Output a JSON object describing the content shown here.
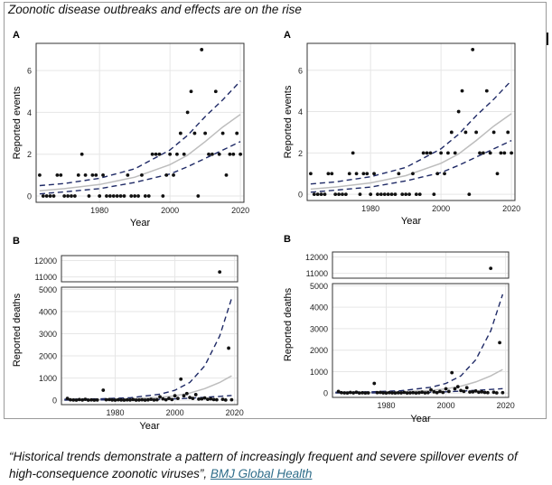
{
  "header": {
    "title": "Zoonotic disease outbreaks and effects are on the rise"
  },
  "caption": {
    "quote": "“Historical trends demonstrate a pattern of increasingly frequent and severe spillover events of high-consequence zoonotic viruses”, ",
    "link": "BMJ Global Health"
  },
  "colors": {
    "panel_border": "#333333",
    "grid": "#e6e6e6",
    "points": "#111111",
    "fit_line": "#bdbdbd",
    "ci_line": "#1f2a66"
  },
  "chart_data": [
    {
      "type": "scatter",
      "panel_label": "A",
      "xlabel": "Year",
      "ylabel": "Reported events",
      "xlim": [
        1962,
        2021
      ],
      "ylim": [
        -0.3,
        7.3
      ],
      "x_ticks": [
        1980,
        2000,
        2020
      ],
      "y_ticks": [
        0,
        2,
        4,
        6
      ],
      "grid": true,
      "points": [
        [
          1963,
          1
        ],
        [
          1964,
          0
        ],
        [
          1965,
          0
        ],
        [
          1966,
          0
        ],
        [
          1967,
          0
        ],
        [
          1968,
          1
        ],
        [
          1969,
          1
        ],
        [
          1970,
          0
        ],
        [
          1971,
          0
        ],
        [
          1972,
          0
        ],
        [
          1973,
          0
        ],
        [
          1974,
          1
        ],
        [
          1975,
          2
        ],
        [
          1976,
          1
        ],
        [
          1977,
          0
        ],
        [
          1978,
          1
        ],
        [
          1979,
          1
        ],
        [
          1980,
          0
        ],
        [
          1981,
          1
        ],
        [
          1982,
          0
        ],
        [
          1983,
          0
        ],
        [
          1984,
          0
        ],
        [
          1985,
          0
        ],
        [
          1986,
          0
        ],
        [
          1987,
          0
        ],
        [
          1988,
          1
        ],
        [
          1989,
          0
        ],
        [
          1990,
          0
        ],
        [
          1991,
          0
        ],
        [
          1992,
          1
        ],
        [
          1993,
          0
        ],
        [
          1994,
          0
        ],
        [
          1995,
          2
        ],
        [
          1996,
          2
        ],
        [
          1997,
          2
        ],
        [
          1998,
          0
        ],
        [
          1999,
          1
        ],
        [
          2000,
          2
        ],
        [
          2001,
          1
        ],
        [
          2002,
          2
        ],
        [
          2003,
          3
        ],
        [
          2004,
          2
        ],
        [
          2005,
          4
        ],
        [
          2006,
          5
        ],
        [
          2007,
          3
        ],
        [
          2008,
          0
        ],
        [
          2009,
          7
        ],
        [
          2010,
          3
        ],
        [
          2011,
          2
        ],
        [
          2012,
          2
        ],
        [
          2013,
          5
        ],
        [
          2014,
          2
        ],
        [
          2015,
          3
        ],
        [
          2016,
          1
        ],
        [
          2017,
          2
        ],
        [
          2018,
          2
        ],
        [
          2019,
          3
        ],
        [
          2020,
          2
        ]
      ],
      "fit": [
        [
          1963,
          0.25
        ],
        [
          1970,
          0.35
        ],
        [
          1980,
          0.55
        ],
        [
          1990,
          0.9
        ],
        [
          2000,
          1.5
        ],
        [
          2005,
          1.95
        ],
        [
          2010,
          2.6
        ],
        [
          2015,
          3.3
        ],
        [
          2020,
          3.9
        ]
      ],
      "ci_upper": [
        [
          1963,
          0.5
        ],
        [
          1970,
          0.6
        ],
        [
          1980,
          0.85
        ],
        [
          1990,
          1.3
        ],
        [
          2000,
          2.2
        ],
        [
          2005,
          2.9
        ],
        [
          2010,
          3.8
        ],
        [
          2015,
          4.6
        ],
        [
          2020,
          5.5
        ]
      ],
      "ci_lower": [
        [
          1963,
          0.1
        ],
        [
          1970,
          0.2
        ],
        [
          1980,
          0.35
        ],
        [
          1990,
          0.65
        ],
        [
          2000,
          1.05
        ],
        [
          2005,
          1.4
        ],
        [
          2010,
          1.8
        ],
        [
          2015,
          2.2
        ],
        [
          2020,
          2.6
        ]
      ]
    },
    {
      "type": "scatter",
      "panel_label": "A",
      "xlabel": "Year",
      "ylabel": "Reported events",
      "xlim": [
        1962,
        2021
      ],
      "ylim": [
        -0.3,
        7.3
      ],
      "x_ticks": [
        1980,
        2000,
        2020
      ],
      "y_ticks": [
        0,
        2,
        4,
        6
      ],
      "grid": true,
      "points": [
        [
          1963,
          1
        ],
        [
          1964,
          0
        ],
        [
          1965,
          0
        ],
        [
          1966,
          0
        ],
        [
          1967,
          0
        ],
        [
          1968,
          1
        ],
        [
          1969,
          1
        ],
        [
          1970,
          0
        ],
        [
          1971,
          0
        ],
        [
          1972,
          0
        ],
        [
          1973,
          0
        ],
        [
          1974,
          1
        ],
        [
          1975,
          2
        ],
        [
          1976,
          1
        ],
        [
          1977,
          0
        ],
        [
          1978,
          1
        ],
        [
          1979,
          1
        ],
        [
          1980,
          0
        ],
        [
          1981,
          1
        ],
        [
          1982,
          0
        ],
        [
          1983,
          0
        ],
        [
          1984,
          0
        ],
        [
          1985,
          0
        ],
        [
          1986,
          0
        ],
        [
          1987,
          0
        ],
        [
          1988,
          1
        ],
        [
          1989,
          0
        ],
        [
          1990,
          0
        ],
        [
          1991,
          0
        ],
        [
          1992,
          1
        ],
        [
          1993,
          0
        ],
        [
          1994,
          0
        ],
        [
          1995,
          2
        ],
        [
          1996,
          2
        ],
        [
          1997,
          2
        ],
        [
          1998,
          0
        ],
        [
          1999,
          1
        ],
        [
          2000,
          2
        ],
        [
          2001,
          1
        ],
        [
          2002,
          2
        ],
        [
          2003,
          3
        ],
        [
          2004,
          2
        ],
        [
          2005,
          4
        ],
        [
          2006,
          5
        ],
        [
          2007,
          3
        ],
        [
          2008,
          0
        ],
        [
          2009,
          7
        ],
        [
          2010,
          3
        ],
        [
          2011,
          2
        ],
        [
          2012,
          2
        ],
        [
          2013,
          5
        ],
        [
          2014,
          2
        ],
        [
          2015,
          3
        ],
        [
          2016,
          1
        ],
        [
          2017,
          2
        ],
        [
          2018,
          2
        ],
        [
          2019,
          3
        ],
        [
          2020,
          2
        ]
      ],
      "fit": [
        [
          1963,
          0.25
        ],
        [
          1970,
          0.35
        ],
        [
          1980,
          0.55
        ],
        [
          1990,
          0.9
        ],
        [
          2000,
          1.5
        ],
        [
          2005,
          1.95
        ],
        [
          2010,
          2.6
        ],
        [
          2015,
          3.3
        ],
        [
          2020,
          3.9
        ]
      ],
      "ci_upper": [
        [
          1963,
          0.5
        ],
        [
          1970,
          0.6
        ],
        [
          1980,
          0.85
        ],
        [
          1990,
          1.3
        ],
        [
          2000,
          2.2
        ],
        [
          2005,
          2.9
        ],
        [
          2010,
          3.8
        ],
        [
          2015,
          4.6
        ],
        [
          2020,
          5.5
        ]
      ],
      "ci_lower": [
        [
          1963,
          0.1
        ],
        [
          1970,
          0.2
        ],
        [
          1980,
          0.35
        ],
        [
          1990,
          0.65
        ],
        [
          2000,
          1.05
        ],
        [
          2005,
          1.4
        ],
        [
          2010,
          1.8
        ],
        [
          2015,
          2.2
        ],
        [
          2020,
          2.6
        ]
      ]
    },
    {
      "type": "scatter",
      "panel_label": "B",
      "xlabel": "Year",
      "ylabel": "Reported deaths",
      "xlim": [
        1962,
        2021
      ],
      "ylim": [
        -200,
        5100
      ],
      "ylim_top": [
        10700,
        12300
      ],
      "x_ticks": [
        1980,
        2000,
        2020
      ],
      "y_ticks": [
        0,
        1000,
        2000,
        3000,
        4000,
        5000
      ],
      "y_ticks_top": [
        11000,
        12000
      ],
      "grid": true,
      "points": [
        [
          1964,
          80
        ],
        [
          1965,
          20
        ],
        [
          1966,
          10
        ],
        [
          1967,
          5
        ],
        [
          1968,
          30
        ],
        [
          1969,
          10
        ],
        [
          1970,
          40
        ],
        [
          1971,
          5
        ],
        [
          1972,
          15
        ],
        [
          1973,
          5
        ],
        [
          1974,
          10
        ],
        [
          1976,
          450
        ],
        [
          1977,
          20
        ],
        [
          1978,
          30
        ],
        [
          1979,
          10
        ],
        [
          1980,
          5
        ],
        [
          1981,
          20
        ],
        [
          1982,
          10
        ],
        [
          1983,
          5
        ],
        [
          1984,
          15
        ],
        [
          1985,
          10
        ],
        [
          1986,
          30
        ],
        [
          1987,
          5
        ],
        [
          1988,
          10
        ],
        [
          1989,
          20
        ],
        [
          1990,
          5
        ],
        [
          1991,
          15
        ],
        [
          1992,
          40
        ],
        [
          1993,
          10
        ],
        [
          1994,
          20
        ],
        [
          1995,
          150
        ],
        [
          1996,
          60
        ],
        [
          1997,
          20
        ],
        [
          1998,
          80
        ],
        [
          1999,
          30
        ],
        [
          2000,
          200
        ],
        [
          2001,
          80
        ],
        [
          2002,
          950
        ],
        [
          2003,
          200
        ],
        [
          2004,
          300
        ],
        [
          2005,
          120
        ],
        [
          2006,
          80
        ],
        [
          2007,
          250
        ],
        [
          2008,
          50
        ],
        [
          2009,
          60
        ],
        [
          2010,
          100
        ],
        [
          2011,
          40
        ],
        [
          2012,
          60
        ],
        [
          2013,
          30
        ],
        [
          2014,
          20
        ],
        [
          2016,
          40
        ],
        [
          2017,
          10
        ],
        [
          2018,
          2350
        ],
        [
          2019,
          20
        ]
      ],
      "points_top": [
        [
          2015,
          11300
        ]
      ],
      "fit": [
        [
          1963,
          15
        ],
        [
          1975,
          30
        ],
        [
          1985,
          60
        ],
        [
          1995,
          130
        ],
        [
          2000,
          200
        ],
        [
          2005,
          320
        ],
        [
          2010,
          520
        ],
        [
          2015,
          800
        ],
        [
          2019,
          1100
        ]
      ],
      "ci_upper": [
        [
          1963,
          40
        ],
        [
          1975,
          60
        ],
        [
          1985,
          110
        ],
        [
          1995,
          270
        ],
        [
          2000,
          450
        ],
        [
          2005,
          800
        ],
        [
          2010,
          1550
        ],
        [
          2015,
          2900
        ],
        [
          2019,
          4600
        ]
      ],
      "ci_lower": [
        [
          1963,
          5
        ],
        [
          1975,
          10
        ],
        [
          1985,
          20
        ],
        [
          1995,
          40
        ],
        [
          2000,
          60
        ],
        [
          2005,
          90
        ],
        [
          2010,
          130
        ],
        [
          2015,
          170
        ],
        [
          2019,
          210
        ]
      ]
    },
    {
      "type": "scatter",
      "panel_label": "B",
      "xlabel": "Year",
      "ylabel": "Reported deaths",
      "xlim": [
        1962,
        2021
      ],
      "ylim": [
        -200,
        5100
      ],
      "ylim_top": [
        10700,
        12300
      ],
      "x_ticks": [
        1980,
        2000,
        2020
      ],
      "y_ticks": [
        0,
        1000,
        2000,
        3000,
        4000,
        5000
      ],
      "y_ticks_top": [
        11000,
        12000
      ],
      "grid": true,
      "points": [
        [
          1964,
          80
        ],
        [
          1965,
          20
        ],
        [
          1966,
          10
        ],
        [
          1967,
          5
        ],
        [
          1968,
          30
        ],
        [
          1969,
          10
        ],
        [
          1970,
          40
        ],
        [
          1971,
          5
        ],
        [
          1972,
          15
        ],
        [
          1973,
          5
        ],
        [
          1974,
          10
        ],
        [
          1976,
          450
        ],
        [
          1977,
          20
        ],
        [
          1978,
          30
        ],
        [
          1979,
          10
        ],
        [
          1980,
          5
        ],
        [
          1981,
          20
        ],
        [
          1982,
          10
        ],
        [
          1983,
          5
        ],
        [
          1984,
          15
        ],
        [
          1985,
          10
        ],
        [
          1986,
          30
        ],
        [
          1987,
          5
        ],
        [
          1988,
          10
        ],
        [
          1989,
          20
        ],
        [
          1990,
          5
        ],
        [
          1991,
          15
        ],
        [
          1992,
          40
        ],
        [
          1993,
          10
        ],
        [
          1994,
          20
        ],
        [
          1995,
          150
        ],
        [
          1996,
          60
        ],
        [
          1997,
          20
        ],
        [
          1998,
          80
        ],
        [
          1999,
          30
        ],
        [
          2000,
          200
        ],
        [
          2001,
          80
        ],
        [
          2002,
          950
        ],
        [
          2003,
          200
        ],
        [
          2004,
          300
        ],
        [
          2005,
          120
        ],
        [
          2006,
          80
        ],
        [
          2007,
          250
        ],
        [
          2008,
          50
        ],
        [
          2009,
          60
        ],
        [
          2010,
          100
        ],
        [
          2011,
          40
        ],
        [
          2012,
          60
        ],
        [
          2013,
          30
        ],
        [
          2014,
          20
        ],
        [
          2016,
          40
        ],
        [
          2017,
          10
        ],
        [
          2018,
          2350
        ],
        [
          2019,
          20
        ]
      ],
      "points_top": [
        [
          2015,
          11300
        ]
      ],
      "fit": [
        [
          1963,
          15
        ],
        [
          1975,
          30
        ],
        [
          1985,
          60
        ],
        [
          1995,
          130
        ],
        [
          2000,
          200
        ],
        [
          2005,
          320
        ],
        [
          2010,
          520
        ],
        [
          2015,
          800
        ],
        [
          2019,
          1100
        ]
      ],
      "ci_upper": [
        [
          1963,
          40
        ],
        [
          1975,
          60
        ],
        [
          1985,
          110
        ],
        [
          1995,
          270
        ],
        [
          2000,
          450
        ],
        [
          2005,
          800
        ],
        [
          2010,
          1550
        ],
        [
          2015,
          2900
        ],
        [
          2019,
          4600
        ]
      ],
      "ci_lower": [
        [
          1963,
          5
        ],
        [
          1975,
          10
        ],
        [
          1985,
          20
        ],
        [
          1995,
          40
        ],
        [
          2000,
          60
        ],
        [
          2005,
          90
        ],
        [
          2010,
          130
        ],
        [
          2015,
          170
        ],
        [
          2019,
          210
        ]
      ]
    }
  ]
}
